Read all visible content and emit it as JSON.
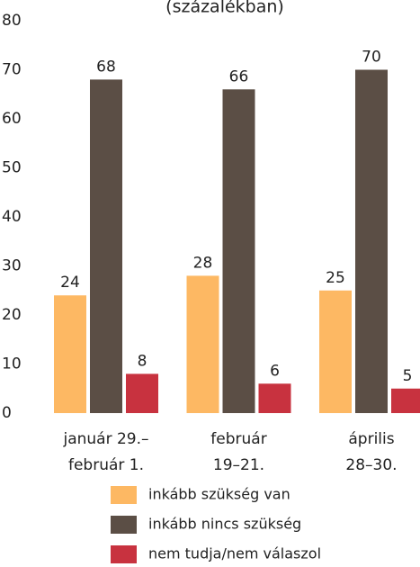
{
  "chart_data": {
    "type": "bar",
    "title": "(százalékban)",
    "categories": [
      [
        "január 29.–",
        "február 1."
      ],
      [
        "február",
        "19–21."
      ],
      [
        "április",
        "28–30."
      ]
    ],
    "series": [
      {
        "name": "inkább szükség van",
        "color": "#fdb863",
        "values": [
          24,
          28,
          25
        ]
      },
      {
        "name": "inkább nincs szükség",
        "color": "#5b4e45",
        "values": [
          68,
          66,
          70
        ]
      },
      {
        "name": "nem tudja/nem válaszol",
        "color": "#c8323f",
        "values": [
          8,
          6,
          5
        ]
      }
    ],
    "ylim": [
      0,
      80
    ],
    "yticks": [
      0,
      10,
      20,
      30,
      40,
      50,
      60,
      70,
      80
    ],
    "grid": false
  }
}
